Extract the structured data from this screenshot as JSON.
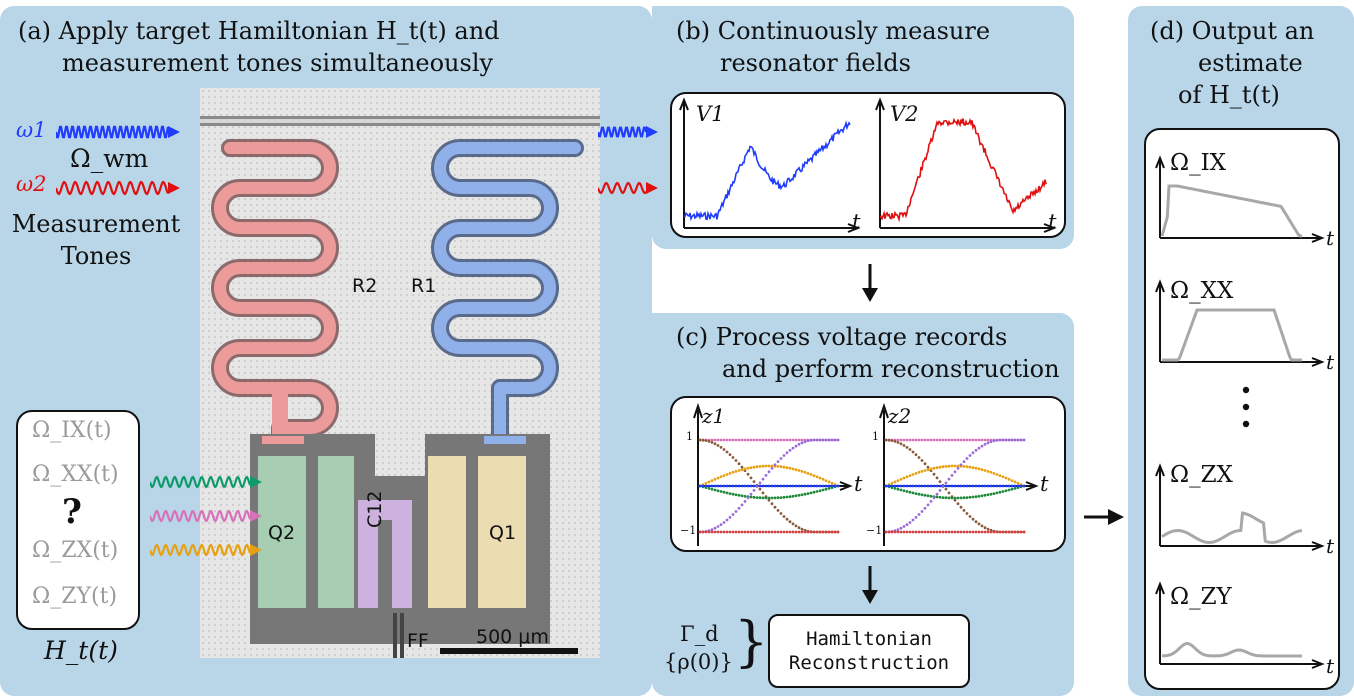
{
  "panel_a": {
    "title_line1": "(a) Apply target Hamiltonian H_t(t) and",
    "title_line2": "measurement tones simultaneously",
    "tone1": "ω1",
    "tone2": "ω2",
    "omega_wm": "Ω_wm",
    "measurement_tones": "Measurement\nTones",
    "chip_labels": {
      "r2": "R2",
      "r1": "R1",
      "q2": "Q2",
      "q1": "Q1",
      "c12": "C12",
      "ff": "FF",
      "scale": "500 μm"
    },
    "hamiltonian_terms": [
      "Ω_IX(t)",
      "Ω_XX(t)",
      "?",
      "Ω_ZX(t)",
      "Ω_ZY(t)"
    ],
    "hamiltonian_label": "H_t(t)"
  },
  "panel_b": {
    "title_line1": "(b) Continuously measure",
    "title_line2": "resonator fields",
    "plot1_y": "V1",
    "plot2_y": "V2",
    "x_label": "t"
  },
  "panel_c": {
    "title_line1": "(c) Process voltage records",
    "title_line2": "and perform reconstruction",
    "plot1_y": "z1",
    "plot2_y": "z2",
    "x_label": "t",
    "ticks": [
      "1",
      "−1"
    ],
    "inputs": [
      "Γ_d",
      "{ρ(0)}"
    ],
    "box_line1": "Hamiltonian",
    "box_line2": "Reconstruction"
  },
  "panel_d": {
    "title_line1": "(d) Output an",
    "title_line2": "estimate",
    "title_line3": "of H_t(t)",
    "plots": [
      "Ω_IX",
      "Ω_XX",
      "Ω_ZX",
      "Ω_ZY"
    ],
    "x_label": "t"
  },
  "colors": {
    "panel_bg": "#b9d6e8",
    "blue": "#1f3cff",
    "red": "#e01010",
    "green": "#0f9a6a",
    "pink": "#d772b9",
    "orange": "#e7a011",
    "gray": "#a8a8a8"
  }
}
